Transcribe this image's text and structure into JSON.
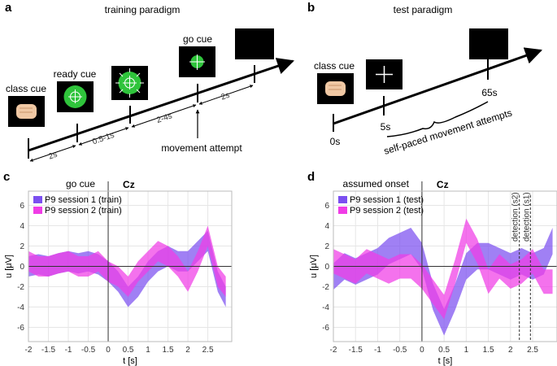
{
  "diagrams": {
    "a": {
      "label": "a",
      "title": "training paradigm",
      "cues": [
        "class cue",
        "ready cue",
        "go cue"
      ],
      "intervals": [
        "2s",
        "0.5-1s",
        "2-4s",
        "2s"
      ],
      "note": "movement attempt"
    },
    "b": {
      "label": "b",
      "title": "test paradigm",
      "cues": [
        "class cue"
      ],
      "times": [
        "0s",
        "5s",
        "65s"
      ],
      "note": "self-paced movement attempts"
    }
  },
  "chart_data": [
    {
      "type": "band",
      "panel": "c",
      "title": "Cz",
      "xlabel": "t [s]",
      "ylabel": "u [μV]",
      "xlim": [
        -2,
        3.1
      ],
      "ylim": [
        -7.4,
        7.4
      ],
      "xticks": [
        -2,
        -1.5,
        -1,
        -0.5,
        0,
        0.5,
        1,
        1.5,
        2,
        2.5
      ],
      "yticks": [
        -6,
        -4,
        -2,
        0,
        2,
        4,
        6
      ],
      "grid": true,
      "hline": 0,
      "vlines": [
        {
          "x": 0,
          "label": "go cue",
          "style": "solid"
        }
      ],
      "x": [
        -2,
        -1.75,
        -1.5,
        -1.25,
        -1,
        -0.75,
        -0.5,
        -0.25,
        0,
        0.25,
        0.5,
        0.75,
        1,
        1.25,
        1.5,
        1.75,
        2,
        2.25,
        2.5,
        2.75,
        2.95
      ],
      "series": [
        {
          "name": "P9 session 1 (train)",
          "color": "#7b4ff0",
          "lower": [
            -1,
            -0.8,
            -1,
            -0.7,
            -0.5,
            -0.7,
            -0.5,
            -0.8,
            -1.5,
            -2.5,
            -4,
            -3,
            -1.5,
            -0.5,
            0,
            -0.5,
            -0.5,
            0.5,
            1.5,
            -2.5,
            -4
          ],
          "upper": [
            1,
            1.2,
            1,
            1.3,
            1.5,
            1.3,
            1.5,
            1.2,
            0.5,
            -0.5,
            -2,
            -1,
            0.5,
            1.5,
            2,
            1.5,
            1.5,
            2.5,
            3.5,
            -0.5,
            -2
          ]
        },
        {
          "name": "P9 session 2 (train)",
          "color": "#f03ce6",
          "lower": [
            -0.5,
            -1,
            -1,
            -0.7,
            -0.5,
            -1,
            -1,
            -0.5,
            -1.5,
            -2,
            -3,
            -1.5,
            -0.5,
            0.5,
            0,
            -1,
            -2.5,
            -0.5,
            2,
            -2,
            -3
          ],
          "upper": [
            1.5,
            1,
            1,
            1.3,
            1.5,
            1,
            1,
            1.5,
            0.5,
            0,
            -1,
            0.5,
            1.5,
            2.5,
            2,
            1,
            -0.5,
            1.5,
            4,
            0,
            -1
          ]
        }
      ]
    },
    {
      "type": "band",
      "panel": "d",
      "title": "Cz",
      "xlabel": "t [s]",
      "ylabel": "u [μV]",
      "xlim": [
        -2,
        3.05
      ],
      "ylim": [
        -7.4,
        7.4
      ],
      "xticks": [
        -2,
        -1.5,
        -1,
        -0.5,
        0,
        0.5,
        1,
        1.5,
        2,
        2.5
      ],
      "yticks": [
        -6,
        -4,
        -2,
        0,
        2,
        4,
        6
      ],
      "grid": true,
      "hline": 0,
      "vlines": [
        {
          "x": 0,
          "label": "assumed onset",
          "style": "solid"
        },
        {
          "x": 2.2,
          "label": "detection (s2)",
          "style": "dashed"
        },
        {
          "x": 2.45,
          "label": "detection (s1)",
          "style": "dashed"
        }
      ],
      "x": [
        -2,
        -1.75,
        -1.5,
        -1.25,
        -1,
        -0.75,
        -0.5,
        -0.25,
        0,
        0.25,
        0.5,
        0.75,
        1,
        1.25,
        1.5,
        1.75,
        2,
        2.25,
        2.5,
        2.75,
        2.95
      ],
      "series": [
        {
          "name": "P9 session 1 (test)",
          "color": "#7b4ff0",
          "lower": [
            -2.3,
            -1.3,
            -1.8,
            -1.3,
            -0.8,
            0.2,
            0.7,
            1.2,
            -0.3,
            -4.3,
            -6.8,
            -4.3,
            -1.3,
            -0.3,
            -0.3,
            -0.8,
            -1.3,
            -0.8,
            -1.3,
            -0.8,
            1.2
          ],
          "upper": [
            0.3,
            1.3,
            0.8,
            1.3,
            1.8,
            2.8,
            3.3,
            3.8,
            2.3,
            -1.7,
            -4.2,
            -1.7,
            1.3,
            2.3,
            2.3,
            1.8,
            1.3,
            1.8,
            1.3,
            1.8,
            3.8
          ]
        },
        {
          "name": "P9 session 2 (test)",
          "color": "#f03ce6",
          "lower": [
            -0.7,
            -1.2,
            -1.7,
            -0.7,
            -1.2,
            -1.7,
            -1.2,
            -1.2,
            -2.2,
            -3.7,
            -5.2,
            -1.7,
            2.3,
            0.3,
            -2.7,
            -1.2,
            -2.2,
            -1.7,
            -0.7,
            -2.7,
            -2.7
          ],
          "upper": [
            1.7,
            1.2,
            0.7,
            1.7,
            1.2,
            0.7,
            1.2,
            1.2,
            0.2,
            -1.3,
            -2.8,
            0.7,
            4.7,
            2.7,
            -0.3,
            1.2,
            0.2,
            0.7,
            1.7,
            -0.3,
            -0.3
          ]
        }
      ]
    }
  ]
}
